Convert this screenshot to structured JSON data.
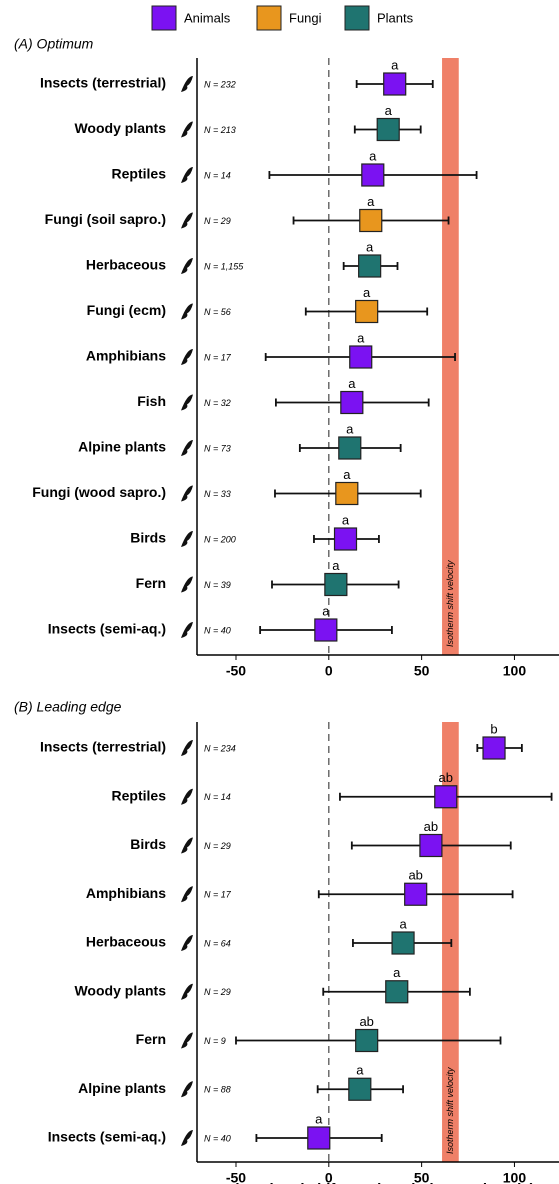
{
  "legend": {
    "series": [
      {
        "name": "Animals",
        "color": "#7b12f2"
      },
      {
        "name": "Fungi",
        "color": "#e8961e"
      },
      {
        "name": "Plants",
        "color": "#1f7470"
      }
    ]
  },
  "chart_data": [
    {
      "type": "forest",
      "title": "(A) Optimum",
      "categories": [
        "Insects (terrestrial)",
        "Woody plants",
        "Reptiles",
        "Fungi (soil sapro.)",
        "Herbaceous",
        "Fungi (ecm)",
        "Amphibians",
        "Fish",
        "Alpine plants",
        "Fungi (wood sapro.)",
        "Birds",
        "Fern",
        "Insects (semi-aq.)"
      ],
      "groups": [
        "Animals",
        "Plants",
        "Animals",
        "Fungi",
        "Plants",
        "Fungi",
        "Animals",
        "Animals",
        "Plants",
        "Fungi",
        "Animals",
        "Plants",
        "Animals"
      ],
      "values": [
        35.5,
        32,
        23.7,
        22.6,
        22,
        20.4,
        17.2,
        12.4,
        11.3,
        9.7,
        9,
        3.8,
        -1.6
      ],
      "low": [
        15,
        14,
        -32,
        -19,
        8,
        -12.4,
        -34,
        -28.5,
        -15.6,
        -29,
        -8,
        -30.6,
        -37
      ],
      "high": [
        56,
        49.5,
        79.6,
        64.5,
        37,
        53,
        68,
        53.8,
        38.7,
        49.5,
        27,
        37.6,
        34
      ],
      "letters": [
        "a",
        "a",
        "a",
        "a",
        "a",
        "a",
        "a",
        "a",
        "a",
        "a",
        "a",
        "a",
        "a"
      ],
      "n_labels": [
        "N = 232",
        "N = 213",
        "N = 14",
        "N = 29",
        "N = 1,155",
        "N = 56",
        "N = 17",
        "N = 32",
        "N = 73",
        "N = 33",
        "N = 200",
        "N = 39",
        "N = 40"
      ],
      "xlim": [
        -71,
        124
      ],
      "xticks": [
        -50,
        0,
        50,
        100
      ],
      "refline": 0,
      "band": [
        61,
        70
      ],
      "band_label": "Isotherm shift velocity"
    },
    {
      "type": "forest",
      "title": "(B) Leading edge",
      "categories": [
        "Insects (terrestrial)",
        "Reptiles",
        "Birds",
        "Amphibians",
        "Herbaceous",
        "Woody plants",
        "Fern",
        "Alpine plants",
        "Insects (semi-aq.)"
      ],
      "groups": [
        "Animals",
        "Animals",
        "Animals",
        "Animals",
        "Plants",
        "Plants",
        "Plants",
        "Plants",
        "Animals"
      ],
      "values": [
        89,
        63,
        55,
        46.8,
        40,
        36.6,
        20.4,
        16.7,
        -5.4
      ],
      "low": [
        80,
        6,
        12.4,
        -5.4,
        13,
        -3,
        -50,
        -6,
        -39
      ],
      "high": [
        104,
        120,
        98,
        99,
        66,
        76,
        92.5,
        40,
        28.5
      ],
      "letters": [
        "b",
        "ab",
        "ab",
        "ab",
        "a",
        "a",
        "ab",
        "a",
        "a"
      ],
      "n_labels": [
        "N = 234",
        "N = 14",
        "N = 29",
        "N = 17",
        "N = 64",
        "N = 29",
        "N = 9",
        "N = 88",
        "N = 40"
      ],
      "xlim": [
        -71,
        124
      ],
      "xticks": [
        -50,
        0,
        50,
        100
      ],
      "refline": 0,
      "band": [
        61,
        70
      ],
      "band_label": "Isotherm shift velocity",
      "xlabel": "Elevational shift per decade (m per decade)"
    }
  ]
}
